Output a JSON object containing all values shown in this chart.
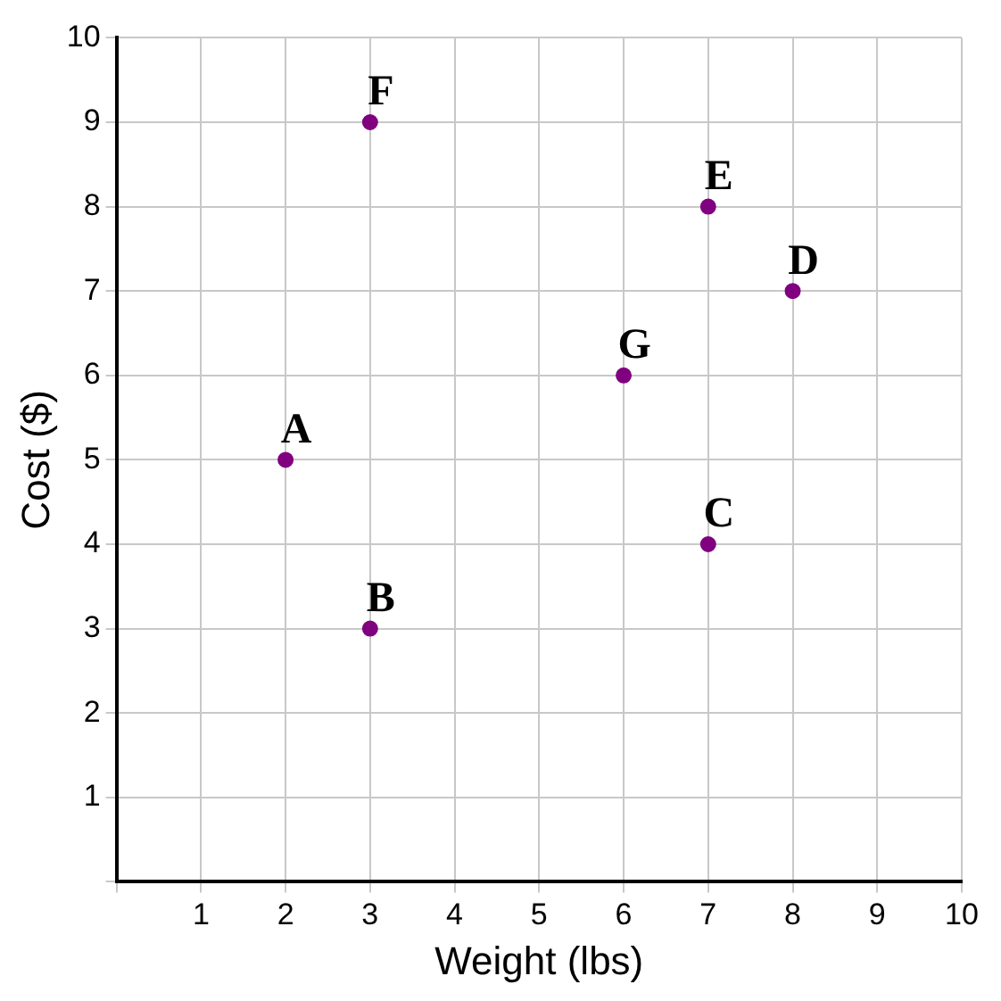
{
  "chart_data": {
    "type": "scatter",
    "xlabel": "Weight (lbs)",
    "ylabel": "Cost ($)",
    "x": [
      2,
      3,
      7,
      8,
      7,
      3,
      6
    ],
    "series": [
      {
        "color": "#800080",
        "values": [
          5,
          3,
          4,
          7,
          8,
          9,
          6
        ]
      }
    ],
    "xlim": [
      0,
      10
    ],
    "ylim": [
      0,
      10
    ],
    "xticks": [
      {
        "value": 0,
        "label": null
      },
      1,
      2,
      3,
      4,
      5,
      6,
      7,
      8,
      9,
      10
    ],
    "yticks": [
      {
        "value": 0,
        "label": null
      },
      1,
      2,
      3,
      4,
      5,
      6,
      7,
      8,
      9,
      10
    ],
    "grid": true,
    "legend": false,
    "marker": "circle",
    "annotations": [
      {
        "text": "A",
        "x": 2,
        "y": 5
      },
      {
        "text": "B",
        "x": 3,
        "y": 3
      },
      {
        "text": "C",
        "x": 7,
        "y": 4
      },
      {
        "text": "D",
        "x": 8,
        "y": 7
      },
      {
        "text": "E",
        "x": 7,
        "y": 8
      },
      {
        "text": "F",
        "x": 3,
        "y": 9
      },
      {
        "text": "G",
        "x": 6,
        "y": 6
      }
    ]
  }
}
